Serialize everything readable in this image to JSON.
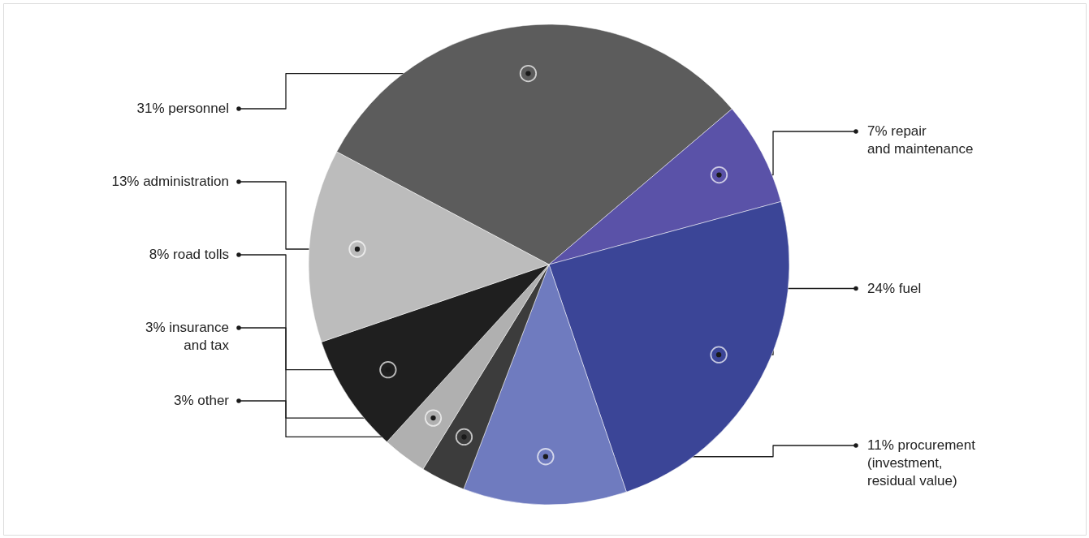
{
  "chart_data": {
    "type": "pie",
    "categories": [
      "personnel",
      "repair\nand maintenance",
      "fuel",
      "procurement\n(investment,\nresidual value)",
      "other",
      "insurance\nand tax",
      "road tolls",
      "administration"
    ],
    "values": [
      31,
      7,
      24,
      11,
      3,
      3,
      8,
      13
    ],
    "value_labels": [
      "31%",
      "7%",
      "24%",
      "11%",
      "3%",
      "3%",
      "8%",
      "13%"
    ],
    "colors": [
      "#5c5c5c",
      "#5a52a8",
      "#3b4597",
      "#6f7bbf",
      "#3c3c3c",
      "#b0b0b0",
      "#1f1f1f",
      "#bcbcbc"
    ]
  }
}
